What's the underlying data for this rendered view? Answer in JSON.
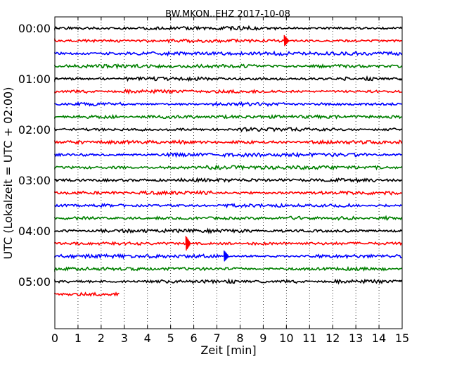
{
  "chart_data": {
    "type": "line",
    "title": "BW.MKON..EHZ 2017-10-08",
    "xlabel": "Zeit  [min]",
    "ylabel": "UTC (Lokalzeit = UTC + 02:00)",
    "xlim": [
      0,
      15
    ],
    "xticks": [
      "0",
      "1",
      "2",
      "3",
      "4",
      "5",
      "6",
      "7",
      "8",
      "9",
      "10",
      "11",
      "12",
      "13",
      "14",
      "15"
    ],
    "y_tick_labels": [
      "00:00",
      "01:00",
      "02:00",
      "03:00",
      "04:00",
      "05:00"
    ],
    "grid": "vertical-dotted",
    "color_cycle": [
      "#000000",
      "#ff0000",
      "#0000ff",
      "#008000"
    ],
    "traces": [
      {
        "start": "00:00",
        "color": "#000000",
        "end_min": 15
      },
      {
        "start": "00:15",
        "color": "#ff0000",
        "end_min": 15,
        "events": [
          {
            "min": 10.0,
            "amp": 0.45
          }
        ]
      },
      {
        "start": "00:30",
        "color": "#0000ff",
        "end_min": 15
      },
      {
        "start": "00:45",
        "color": "#008000",
        "end_min": 15
      },
      {
        "start": "01:00",
        "color": "#000000",
        "end_min": 15
      },
      {
        "start": "01:15",
        "color": "#ff0000",
        "end_min": 15
      },
      {
        "start": "01:30",
        "color": "#0000ff",
        "end_min": 15
      },
      {
        "start": "01:45",
        "color": "#008000",
        "end_min": 15
      },
      {
        "start": "02:00",
        "color": "#000000",
        "end_min": 15
      },
      {
        "start": "02:15",
        "color": "#ff0000",
        "end_min": 15
      },
      {
        "start": "02:30",
        "color": "#0000ff",
        "end_min": 15
      },
      {
        "start": "02:45",
        "color": "#008000",
        "end_min": 15
      },
      {
        "start": "03:00",
        "color": "#000000",
        "end_min": 15
      },
      {
        "start": "03:15",
        "color": "#ff0000",
        "end_min": 15
      },
      {
        "start": "03:30",
        "color": "#0000ff",
        "end_min": 15
      },
      {
        "start": "03:45",
        "color": "#008000",
        "end_min": 15
      },
      {
        "start": "04:00",
        "color": "#000000",
        "end_min": 15
      },
      {
        "start": "04:15",
        "color": "#ff0000",
        "end_min": 15,
        "events": [
          {
            "min": 5.75,
            "amp": 0.6
          }
        ]
      },
      {
        "start": "04:30",
        "color": "#0000ff",
        "end_min": 15,
        "events": [
          {
            "min": 7.4,
            "amp": 0.45
          }
        ]
      },
      {
        "start": "04:45",
        "color": "#008000",
        "end_min": 15
      },
      {
        "start": "05:00",
        "color": "#000000",
        "end_min": 15
      },
      {
        "start": "05:15",
        "color": "#ff0000",
        "end_min": 2.8
      }
    ]
  }
}
